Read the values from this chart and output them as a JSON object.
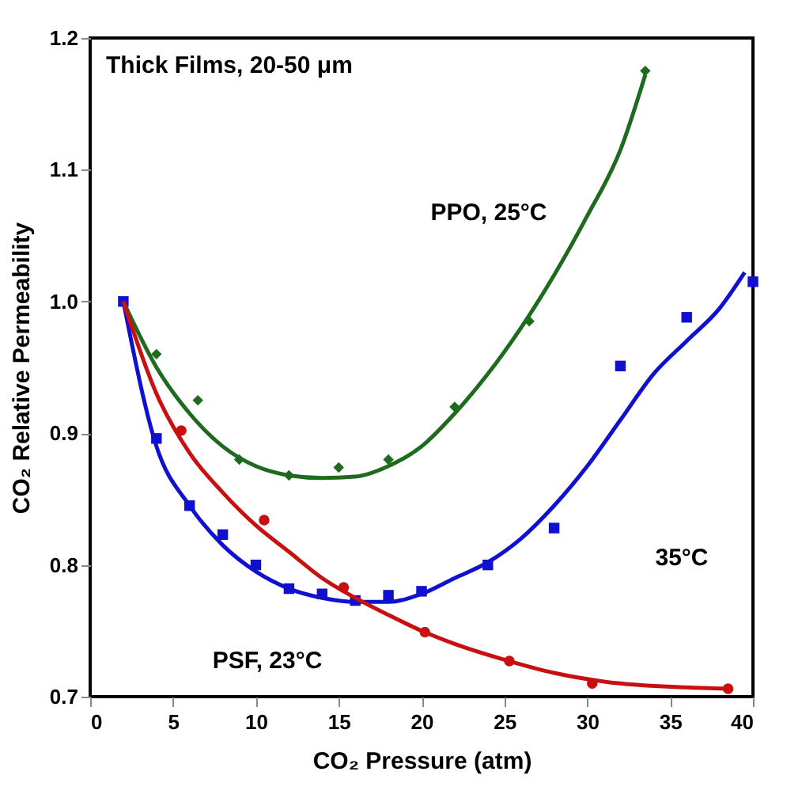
{
  "chart_data": {
    "type": "scatter",
    "xlabel": "CO₂ Pressure (atm)",
    "ylabel": "CO₂ Relative Permeability",
    "xlim": [
      0,
      40
    ],
    "xticks": [
      0,
      5,
      10,
      15,
      20,
      25,
      30,
      35,
      40
    ],
    "ylim": [
      0.7,
      1.2
    ],
    "yticks": [
      0.7,
      0.8,
      0.9,
      {
        "value": 1.0,
        "label": "1.0"
      },
      1.1,
      1.2
    ],
    "grid": false,
    "series": [
      {
        "marker": "diamond",
        "color": "#1e6b1e",
        "x": [
          4,
          6.5,
          9,
          12,
          15,
          18,
          22,
          26.5,
          33.5
        ],
        "values": [
          0.96,
          0.925,
          0.88,
          0.868,
          0.874,
          0.88,
          0.92,
          0.985,
          1.175
        ]
      },
      {
        "marker": "square",
        "color": "#1010d0",
        "x": [
          2,
          4,
          6,
          8,
          10,
          12,
          14,
          16,
          18,
          20,
          24,
          28,
          32,
          36,
          40
        ],
        "values": [
          1.0,
          0.896,
          0.845,
          0.823,
          0.8,
          0.782,
          0.778,
          0.773,
          0.777,
          0.78,
          0.8,
          0.828,
          0.951,
          0.988,
          1.015
        ]
      },
      {
        "marker": "circle",
        "color": "#c81010",
        "x": [
          5.5,
          10.5,
          15.3,
          20.2,
          25.3,
          30.3,
          38.5
        ],
        "values": [
          0.902,
          0.834,
          0.783,
          0.749,
          0.727,
          0.71,
          0.706
        ]
      },
      {
        "type": "line",
        "marker": "none",
        "color": "#1e6b1e",
        "x": [
          2,
          4,
          6,
          8,
          10,
          12,
          14,
          16,
          18,
          20,
          22,
          24,
          26,
          28,
          30,
          32,
          33.5
        ],
        "values": [
          1.0,
          0.95,
          0.915,
          0.89,
          0.875,
          0.868,
          0.866,
          0.867,
          0.875,
          0.89,
          0.915,
          0.945,
          0.98,
          1.02,
          1.065,
          1.115,
          1.172
        ]
      },
      {
        "type": "line",
        "marker": "none",
        "color": "#1010d0",
        "x": [
          2,
          4,
          6,
          8,
          10,
          12,
          14,
          16,
          18,
          20,
          22,
          24,
          26,
          28,
          30,
          32,
          34,
          36,
          38,
          39.5
        ],
        "values": [
          1.0,
          0.89,
          0.845,
          0.815,
          0.795,
          0.782,
          0.775,
          0.772,
          0.772,
          0.778,
          0.79,
          0.802,
          0.82,
          0.845,
          0.875,
          0.91,
          0.945,
          0.97,
          0.995,
          1.022
        ]
      },
      {
        "type": "line",
        "marker": "none",
        "color": "#c81010",
        "x": [
          2,
          4,
          6,
          8,
          10,
          12,
          14,
          16,
          18,
          20,
          22,
          25,
          28,
          32,
          36,
          38.5
        ],
        "values": [
          1.0,
          0.93,
          0.885,
          0.855,
          0.83,
          0.81,
          0.79,
          0.775,
          0.762,
          0.75,
          0.74,
          0.728,
          0.718,
          0.71,
          0.707,
          0.706
        ]
      }
    ],
    "annotations": [
      "Thick Films, 20-50 μm",
      "PPO, 25°C",
      "35°C",
      "PSF, 23°C"
    ]
  }
}
